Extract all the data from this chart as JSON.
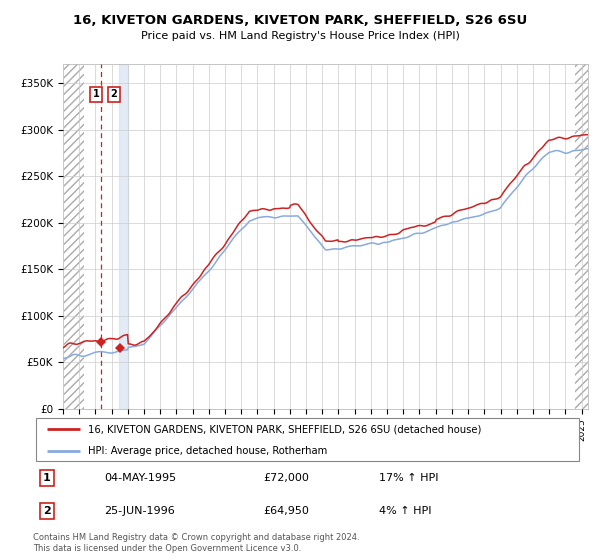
{
  "title1": "16, KIVETON GARDENS, KIVETON PARK, SHEFFIELD, S26 6SU",
  "title2": "Price paid vs. HM Land Registry's House Price Index (HPI)",
  "legend_line1": "16, KIVETON GARDENS, KIVETON PARK, SHEFFIELD, S26 6SU (detached house)",
  "legend_line2": "HPI: Average price, detached house, Rotherham",
  "transaction1_date": "04-MAY-1995",
  "transaction1_price": 72000,
  "transaction1_hpi": "17% ↑ HPI",
  "transaction2_date": "25-JUN-1996",
  "transaction2_price": 64950,
  "transaction2_hpi": "4% ↑ HPI",
  "copyright": "Contains HM Land Registry data © Crown copyright and database right 2024.\nThis data is licensed under the Open Government Licence v3.0.",
  "hpi_color": "#88aadd",
  "price_color": "#cc2222",
  "marker_color": "#cc2222",
  "yticks": [
    0,
    50000,
    100000,
    150000,
    200000,
    250000,
    300000,
    350000
  ],
  "ylabels": [
    "£0",
    "£50K",
    "£100K",
    "£150K",
    "£200K",
    "£250K",
    "£300K",
    "£350K"
  ],
  "ylim": [
    0,
    370000
  ],
  "hatch_color": "#aaaaaa",
  "transaction1_x": 1995.34,
  "transaction2_x": 1996.49,
  "xlim_left": 1993.0,
  "xlim_right": 2025.4,
  "hatch_right_start": 2024.6
}
